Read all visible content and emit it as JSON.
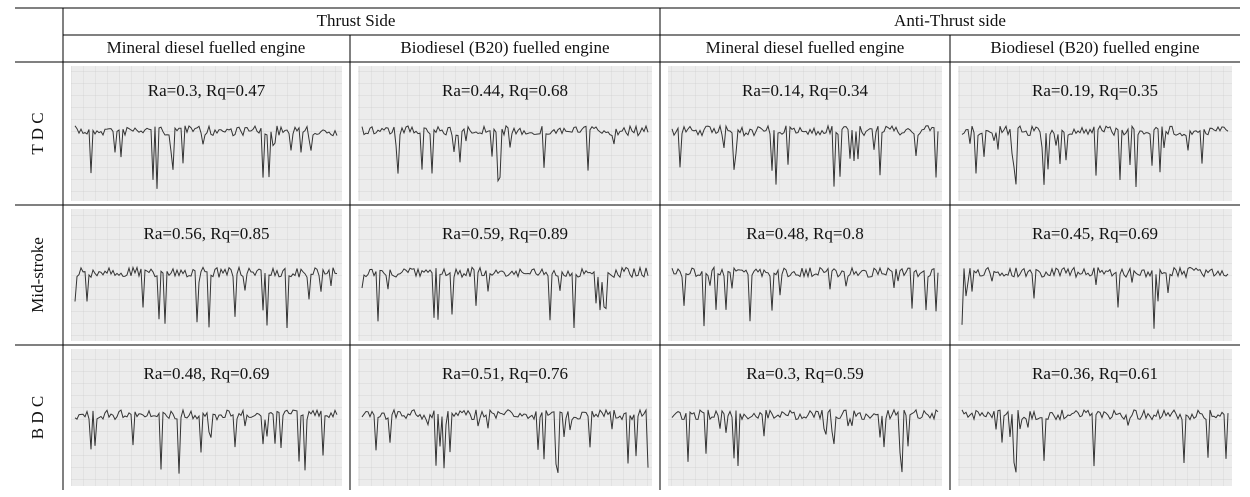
{
  "header": {
    "groups": [
      "Thrust Side",
      "Anti-Thrust side"
    ],
    "columns": [
      "Mineral diesel fuelled engine",
      "Biodiesel (B20) fuelled engine",
      "Mineral diesel fuelled engine",
      "Biodiesel (B20) fuelled engine"
    ]
  },
  "rows": [
    {
      "label": "T D C",
      "cells": [
        "Ra=0.3, Rq=0.47",
        "Ra=0.44, Rq=0.68",
        "Ra=0.14, Rq=0.34",
        "Ra=0.19, Rq=0.35"
      ]
    },
    {
      "label": "Mid-stroke",
      "cells": [
        "Ra=0.56, Rq=0.85",
        "Ra=0.59, Rq=0.89",
        "Ra=0.48, Rq=0.8",
        "Ra=0.45, Rq=0.69"
      ]
    },
    {
      "label": "B D C",
      "cells": [
        "Ra=0.48, Rq=0.69",
        "Ra=0.51, Rq=0.76",
        "Ra=0.3, Rq=0.59",
        "Ra=0.36, Rq=0.61"
      ]
    }
  ]
}
